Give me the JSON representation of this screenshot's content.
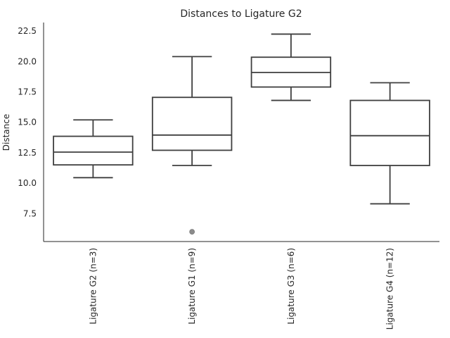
{
  "chart_data": {
    "type": "box",
    "title": "Distances to Ligature G2",
    "xlabel": "",
    "ylabel": "Distance",
    "ylim": [
      5.2,
      23.2
    ],
    "yticks": [
      "7.5",
      "10.0",
      "12.5",
      "15.0",
      "17.5",
      "20.0",
      "22.5"
    ],
    "ytick_values": [
      7.5,
      10.0,
      12.5,
      15.0,
      17.5,
      20.0,
      22.5
    ],
    "categories": [
      "Ligature G2 (n=3)",
      "Ligature G1 (n=9)",
      "Ligature G3 (n=6)",
      "Ligature G4 (n=12)"
    ],
    "boxes": [
      {
        "whisker_low": 10.45,
        "q1": 11.5,
        "median": 12.55,
        "q3": 13.85,
        "whisker_high": 15.2,
        "outliers": []
      },
      {
        "whisker_low": 11.45,
        "q1": 12.7,
        "median": 13.95,
        "q3": 17.05,
        "whisker_high": 20.4,
        "outliers": [
          6.0
        ]
      },
      {
        "whisker_low": 16.8,
        "q1": 17.9,
        "median": 19.1,
        "q3": 20.35,
        "whisker_high": 22.25,
        "outliers": []
      },
      {
        "whisker_low": 8.3,
        "q1": 11.45,
        "median": 13.9,
        "q3": 16.8,
        "whisker_high": 18.25,
        "outliers": []
      }
    ],
    "grid": false,
    "colors": {
      "box_edge": "#3f3f3f",
      "box_fill": "#ffffff",
      "outlier": "#8c8c8c",
      "axis": "#262626",
      "text": "#262626"
    }
  }
}
